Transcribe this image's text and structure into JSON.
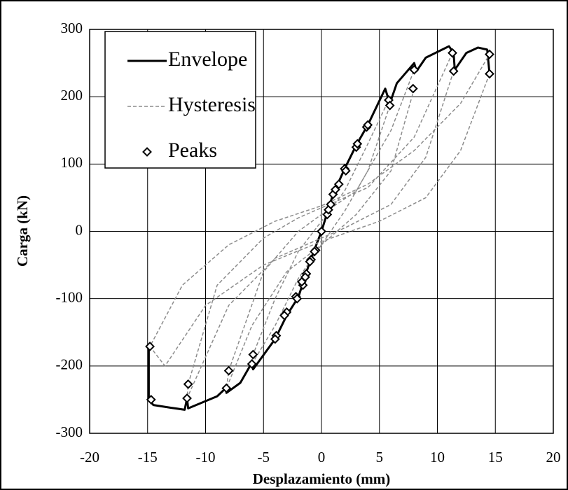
{
  "chart_data": {
    "type": "line",
    "xlabel": "Desplazamiento (mm)",
    "ylabel": "Carga (kN)",
    "xlim": [
      -20,
      20
    ],
    "ylim": [
      -300,
      300
    ],
    "xticks": [
      -20,
      -15,
      -10,
      -5,
      0,
      5,
      10,
      15,
      20
    ],
    "yticks": [
      -300,
      -200,
      -100,
      0,
      100,
      200,
      300
    ],
    "grid": true,
    "legend": "upper left",
    "series": [
      {
        "name": "Envelope",
        "color": "#000000",
        "line_style": "solid",
        "marker": "none",
        "x": [
          -14.9,
          -14.9,
          -14.5,
          -13,
          -11.8,
          -11.6,
          -11.5,
          -9,
          -8.2,
          -8.2,
          -7,
          -6,
          -5.9,
          -4,
          -3,
          -2,
          -1,
          0,
          1,
          2,
          3,
          4,
          5.5,
          5.9,
          6.5,
          8,
          8.2,
          9,
          11,
          11.4,
          11.5,
          12.5,
          13.5,
          14.3,
          14.5
        ],
        "values": [
          -172,
          -250,
          -258,
          -262,
          -265,
          -248,
          -263,
          -245,
          -232,
          -240,
          -225,
          -195,
          -205,
          -160,
          -125,
          -98,
          -45,
          0,
          55,
          93,
          128,
          158,
          212,
          190,
          220,
          250,
          238,
          258,
          275,
          265,
          240,
          265,
          273,
          270,
          234
        ]
      },
      {
        "name": "Hysteresis",
        "color": "#8c8c8c",
        "line_style": "dashed",
        "marker": "none",
        "x": [
          14.5,
          12,
          9,
          5,
          0,
          -5,
          -10,
          -13.5,
          -14.8,
          -12,
          -8,
          -4,
          0,
          4,
          8,
          12,
          14.5,
          null,
          11.4,
          9,
          6,
          2,
          0,
          -4,
          -8,
          -11.6,
          -11.5,
          -9,
          -5,
          -2,
          0,
          4,
          8,
          11.3,
          null,
          8,
          6,
          3,
          0,
          -3,
          -6,
          -8.2,
          -8,
          -5,
          -2,
          0,
          3,
          6,
          8,
          null,
          5.9,
          4,
          2,
          0,
          -2,
          -4,
          -6,
          -5.9,
          -4,
          -2,
          0,
          2,
          4,
          5.8
        ],
        "values": [
          234,
          120,
          50,
          15,
          -15,
          -50,
          -110,
          -200,
          -171,
          -80,
          -20,
          15,
          38,
          70,
          120,
          190,
          263,
          null,
          238,
          110,
          40,
          5,
          -10,
          -40,
          -110,
          -248,
          -227,
          -80,
          -10,
          20,
          35,
          65,
          140,
          265,
          null,
          212,
          90,
          25,
          -20,
          -60,
          -140,
          -233,
          -207,
          -60,
          0,
          25,
          60,
          150,
          240,
          null,
          187,
          90,
          30,
          -20,
          -70,
          -140,
          -197,
          -183,
          -100,
          -30,
          15,
          60,
          130,
          195
        ]
      },
      {
        "name": "Peaks",
        "color": "#000000",
        "line_style": "none",
        "marker": "diamond",
        "x": [
          0,
          0.5,
          0.6,
          0.8,
          1,
          1.2,
          1.5,
          2,
          2.1,
          3,
          3.1,
          3.9,
          4,
          5.8,
          5.9,
          8,
          7.9,
          11.3,
          11.4,
          14.5,
          14.5,
          -0.5,
          -0.6,
          -0.9,
          -1,
          -1.3,
          -1.4,
          -1.6,
          -1.7,
          -2.2,
          -2.1,
          -3,
          -3.2,
          -3.9,
          -4,
          -5.9,
          -6,
          -8,
          -8.2,
          -11.5,
          -11.6,
          -14.8,
          -14.7
        ],
        "values": [
          0,
          25,
          32,
          40,
          55,
          62,
          70,
          93,
          90,
          125,
          130,
          155,
          158,
          195,
          187,
          240,
          212,
          265,
          238,
          263,
          234,
          -28,
          -30,
          -42,
          -45,
          -63,
          -68,
          -80,
          -75,
          -97,
          -100,
          -120,
          -125,
          -155,
          -160,
          -183,
          -197,
          -207,
          -233,
          -227,
          -248,
          -171,
          -250
        ]
      }
    ]
  }
}
